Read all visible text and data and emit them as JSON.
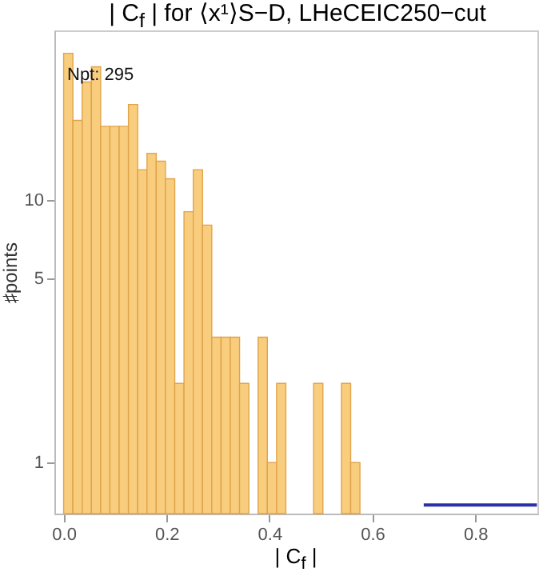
{
  "chart_data": {
    "type": "histogram",
    "title": "| C$_{f}$ | for ⟨x¹⟩S−D, LHeCEIC250−cut",
    "xlabel": "| C$_{f}$ |",
    "ylabel": "♯points",
    "annotations": [
      "Npt: 295"
    ],
    "bins": [
      0,
      0.018,
      0.036,
      0.054,
      0.072,
      0.09,
      0.108,
      0.126,
      0.144,
      0.162,
      0.18,
      0.198,
      0.216,
      0.234,
      0.252,
      0.27,
      0.288,
      0.306,
      0.324,
      0.342,
      0.36,
      0.378,
      0.396,
      0.414,
      0.432,
      0.45,
      0.468,
      0.486,
      0.504,
      0.522,
      0.54,
      0.558,
      0.576
    ],
    "series": [
      {
        "color": "#f9cd7e",
        "values": [
          36,
          20,
          28,
          32,
          19,
          19,
          19,
          23,
          13,
          15,
          14,
          12,
          2,
          9,
          13,
          8,
          3,
          3,
          3,
          2,
          null,
          3,
          1,
          2,
          null,
          null,
          null,
          2,
          null,
          null,
          2,
          1
        ]
      },
      {
        "type": "line",
        "color": "#2b2fa8",
        "x": [
          0.7,
          0.92
        ],
        "values": [
          0.69,
          0.69
        ]
      }
    ],
    "log": "y",
    "xlim": [
      -0.018,
      0.921
    ],
    "ylim": [
      0.64,
      44
    ],
    "xticks": [
      {
        "value": 0,
        "label": "0.0"
      },
      {
        "value": 0.2,
        "label": "0.2"
      },
      {
        "value": 0.4,
        "label": "0.4"
      },
      {
        "value": 0.6,
        "label": "0.6"
      },
      {
        "value": 0.8,
        "label": "0.8"
      }
    ],
    "yticks": [
      1,
      5,
      10
    ]
  }
}
